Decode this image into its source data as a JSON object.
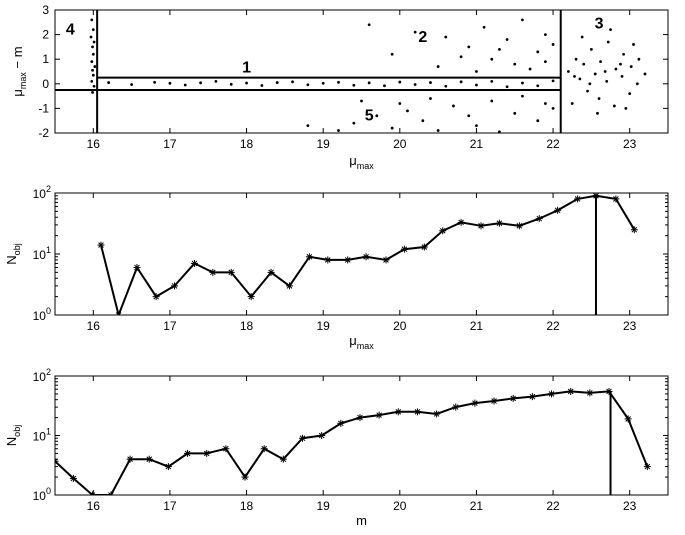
{
  "chart_data": [
    {
      "type": "scatter",
      "xlabel": "μ_max",
      "ylabel": "μ_max − m",
      "xlim": [
        15.5,
        23.5
      ],
      "ylim": [
        -2,
        3
      ],
      "xticks": [
        16,
        17,
        18,
        19,
        20,
        21,
        22,
        23
      ],
      "yticks": [
        -2,
        -1,
        0,
        1,
        2,
        3
      ],
      "regions": [
        {
          "label": "1",
          "x": 18.0,
          "y": 0.45
        },
        {
          "label": "2",
          "x": 20.3,
          "y": 1.7
        },
        {
          "label": "3",
          "x": 22.6,
          "y": 2.25
        },
        {
          "label": "4",
          "x": 15.7,
          "y": 2.0
        },
        {
          "label": "5",
          "x": 19.6,
          "y": -1.5
        }
      ],
      "boundary_lines": {
        "x": [
          16.05,
          22.1
        ],
        "y": [
          0.25,
          -0.25
        ]
      },
      "points": [
        [
          15.98,
          2.6
        ],
        [
          16.0,
          2.2
        ],
        [
          15.97,
          1.9
        ],
        [
          16.01,
          1.7
        ],
        [
          15.99,
          1.5
        ],
        [
          16.0,
          1.2
        ],
        [
          15.98,
          0.9
        ],
        [
          16.02,
          0.7
        ],
        [
          15.99,
          0.55
        ],
        [
          16.0,
          0.35
        ],
        [
          15.98,
          0.1
        ],
        [
          16.01,
          -0.1
        ],
        [
          15.99,
          -0.35
        ],
        [
          16.2,
          0.05
        ],
        [
          16.5,
          -0.03
        ],
        [
          16.8,
          0.06
        ],
        [
          17.0,
          0.02
        ],
        [
          17.2,
          -0.05
        ],
        [
          17.4,
          0.04
        ],
        [
          17.6,
          0.1
        ],
        [
          17.8,
          -0.02
        ],
        [
          18.0,
          0.03
        ],
        [
          18.2,
          -0.07
        ],
        [
          18.4,
          0.05
        ],
        [
          18.6,
          0.08
        ],
        [
          18.8,
          -0.04
        ],
        [
          19.0,
          0.02
        ],
        [
          19.2,
          0.06
        ],
        [
          19.4,
          -0.06
        ],
        [
          19.6,
          0.04
        ],
        [
          19.8,
          -0.08
        ],
        [
          20.0,
          0.07
        ],
        [
          20.2,
          -0.03
        ],
        [
          20.4,
          0.05
        ],
        [
          20.6,
          -0.1
        ],
        [
          20.8,
          0.08
        ],
        [
          21.0,
          -0.05
        ],
        [
          21.2,
          0.1
        ],
        [
          21.4,
          -0.12
        ],
        [
          21.6,
          0.03
        ],
        [
          21.8,
          -0.08
        ],
        [
          22.0,
          0.12
        ],
        [
          19.6,
          2.4
        ],
        [
          20.2,
          2.1
        ],
        [
          20.6,
          1.9
        ],
        [
          20.9,
          1.5
        ],
        [
          21.1,
          2.3
        ],
        [
          21.4,
          1.8
        ],
        [
          21.6,
          2.6
        ],
        [
          21.8,
          1.3
        ],
        [
          21.9,
          2.0
        ],
        [
          20.8,
          1.1
        ],
        [
          21.2,
          1.0
        ],
        [
          21.5,
          0.8
        ],
        [
          21.7,
          0.6
        ],
        [
          20.5,
          0.7
        ],
        [
          19.9,
          1.2
        ],
        [
          21.0,
          0.5
        ],
        [
          21.3,
          1.4
        ],
        [
          21.9,
          0.9
        ],
        [
          22.0,
          1.6
        ],
        [
          19.2,
          -1.9
        ],
        [
          19.4,
          -1.6
        ],
        [
          19.7,
          -1.3
        ],
        [
          19.9,
          -1.8
        ],
        [
          20.1,
          -1.1
        ],
        [
          20.3,
          -1.5
        ],
        [
          20.5,
          -1.9
        ],
        [
          20.7,
          -0.9
        ],
        [
          20.9,
          -1.3
        ],
        [
          21.0,
          -1.7
        ],
        [
          21.2,
          -0.7
        ],
        [
          21.3,
          -1.95
        ],
        [
          21.5,
          -1.2
        ],
        [
          21.6,
          -0.5
        ],
        [
          21.8,
          -1.5
        ],
        [
          21.9,
          -0.8
        ],
        [
          22.0,
          -1.0
        ],
        [
          20.4,
          -0.6
        ],
        [
          20.0,
          -0.8
        ],
        [
          19.5,
          -0.7
        ],
        [
          18.8,
          -1.7
        ],
        [
          22.2,
          0.5
        ],
        [
          22.3,
          1.0
        ],
        [
          22.35,
          0.2
        ],
        [
          22.4,
          0.8
        ],
        [
          22.45,
          -0.3
        ],
        [
          22.5,
          1.4
        ],
        [
          22.55,
          0.4
        ],
        [
          22.6,
          -0.6
        ],
        [
          22.62,
          0.9
        ],
        [
          22.7,
          0.1
        ],
        [
          22.72,
          1.7
        ],
        [
          22.8,
          -0.9
        ],
        [
          22.82,
          0.6
        ],
        [
          22.9,
          0.3
        ],
        [
          22.92,
          1.2
        ],
        [
          23.0,
          -0.4
        ],
        [
          23.02,
          0.7
        ],
        [
          23.1,
          0.0
        ],
        [
          23.12,
          1.0
        ],
        [
          23.2,
          0.4
        ],
        [
          22.25,
          -0.8
        ],
        [
          22.38,
          1.9
        ],
        [
          22.58,
          -1.2
        ],
        [
          22.75,
          2.2
        ],
        [
          22.95,
          -1.0
        ],
        [
          23.05,
          1.6
        ],
        [
          22.48,
          0.0
        ],
        [
          22.68,
          0.5
        ],
        [
          22.88,
          0.8
        ],
        [
          22.28,
          0.3
        ]
      ]
    },
    {
      "type": "line",
      "xlabel": "μ_max",
      "ylabel": "N_obj",
      "yscale": "log",
      "xlim": [
        15.5,
        23.5
      ],
      "ylim": [
        1,
        100
      ],
      "xticks": [
        16,
        17,
        18,
        19,
        20,
        21,
        22,
        23
      ],
      "yticks": [
        1,
        10,
        100
      ],
      "ytick_labels": [
        "10^0",
        "10^1",
        "10^2"
      ],
      "x": [
        16.1,
        16.33,
        16.57,
        16.82,
        17.06,
        17.32,
        17.56,
        17.8,
        18.06,
        18.32,
        18.56,
        18.82,
        19.06,
        19.32,
        19.56,
        19.82,
        20.06,
        20.32,
        20.56,
        20.8,
        21.06,
        21.3,
        21.56,
        21.82,
        22.06,
        22.32,
        22.56,
        22.82,
        23.06
      ],
      "y": [
        14,
        1,
        6,
        2,
        3,
        7,
        5,
        5,
        2,
        5,
        3,
        9,
        8,
        8,
        9,
        8,
        12,
        13,
        24,
        33,
        29,
        32,
        29,
        38,
        52,
        80,
        90,
        80,
        25
      ],
      "vline": 22.56
    },
    {
      "type": "line",
      "xlabel": "m",
      "ylabel": "N_obj",
      "yscale": "log",
      "xlim": [
        15.5,
        23.5
      ],
      "ylim": [
        1,
        100
      ],
      "xticks": [
        16,
        17,
        18,
        19,
        20,
        21,
        22,
        23
      ],
      "yticks": [
        1,
        10,
        100
      ],
      "ytick_labels": [
        "10^0",
        "10^1",
        "10^2"
      ],
      "x": [
        15.5,
        15.74,
        15.99,
        16.23,
        16.48,
        16.73,
        16.98,
        17.23,
        17.48,
        17.73,
        17.98,
        18.23,
        18.48,
        18.73,
        18.98,
        19.23,
        19.48,
        19.73,
        19.98,
        20.23,
        20.48,
        20.73,
        20.98,
        21.23,
        21.48,
        21.73,
        21.98,
        22.23,
        22.48,
        22.73,
        22.98,
        23.23
      ],
      "y": [
        3.7,
        1.9,
        1,
        1,
        4,
        4,
        3,
        5,
        5,
        6,
        2,
        6,
        4,
        9,
        10,
        16,
        20,
        22,
        25,
        25,
        23,
        30,
        35,
        38,
        42,
        45,
        50,
        55,
        52,
        55,
        19,
        3
      ],
      "vline": 22.75
    }
  ]
}
